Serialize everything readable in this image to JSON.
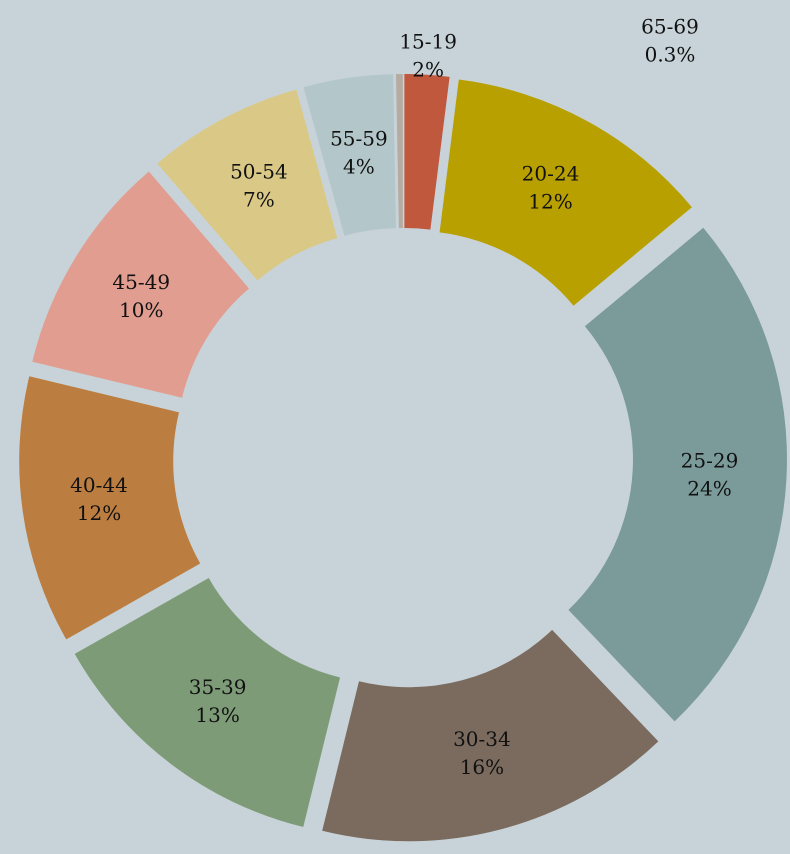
{
  "chart_data": {
    "type": "donut",
    "categories": [
      "15-19",
      "20-24",
      "25-29",
      "30-34",
      "35-39",
      "40-44",
      "45-49",
      "50-54",
      "55-59",
      "65-69"
    ],
    "values": [
      2,
      12,
      24,
      16,
      13,
      12,
      10,
      7,
      4,
      0.3
    ],
    "value_labels": [
      "2%",
      "12%",
      "24%",
      "16%",
      "13%",
      "12%",
      "10%",
      "7%",
      "4%",
      "0.3%"
    ],
    "colors": [
      "#c0583e",
      "#b8a000",
      "#7b9a9a",
      "#7a6b5e",
      "#7e9b77",
      "#bb7e40",
      "#e09d90",
      "#dac986",
      "#b3c6c9",
      "#b5aba0"
    ]
  }
}
